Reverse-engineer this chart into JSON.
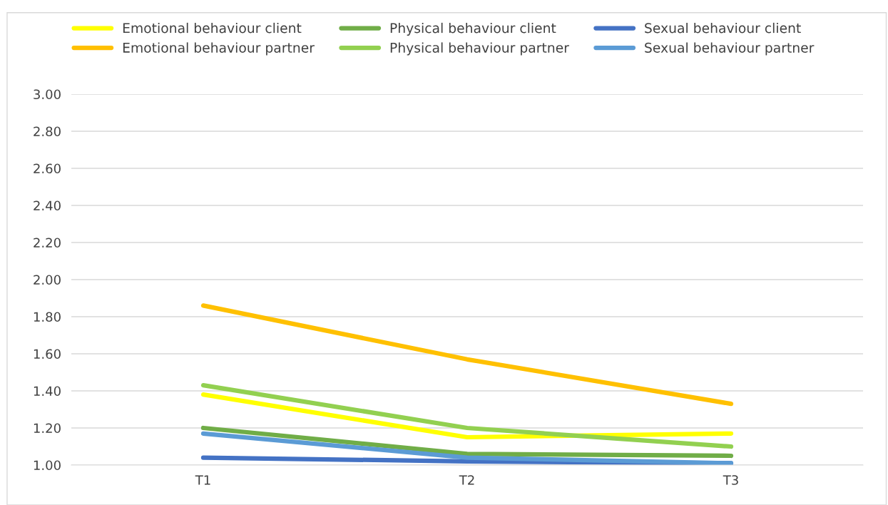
{
  "chart_data": {
    "type": "line",
    "categories": [
      "T1",
      "T2",
      "T3"
    ],
    "series": [
      {
        "name": "Emotional behaviour client",
        "color": "#ffff00",
        "values": [
          1.38,
          1.15,
          1.17
        ]
      },
      {
        "name": "Emotional behaviour partner",
        "color": "#ffc000",
        "values": [
          1.86,
          1.57,
          1.33
        ]
      },
      {
        "name": "Physical behaviour client",
        "color": "#70ad47",
        "values": [
          1.2,
          1.06,
          1.05
        ]
      },
      {
        "name": "Physical behaviour partner",
        "color": "#92d050",
        "values": [
          1.43,
          1.2,
          1.1
        ]
      },
      {
        "name": "Sexual behaviour client",
        "color": "#4472c4",
        "values": [
          1.04,
          1.02,
          1.01
        ]
      },
      {
        "name": "Sexual behaviour partner",
        "color": "#5b9bd5",
        "values": [
          1.17,
          1.04,
          1.01
        ]
      }
    ],
    "ylim": [
      1.0,
      3.0
    ],
    "yticks": [
      {
        "value": 1.0,
        "label": "1.00"
      },
      {
        "value": 1.2,
        "label": "1.20"
      },
      {
        "value": 1.4,
        "label": "1.40"
      },
      {
        "value": 1.6,
        "label": "1.60"
      },
      {
        "value": 1.8,
        "label": "1.80"
      },
      {
        "value": 2.0,
        "label": "2.00"
      },
      {
        "value": 2.2,
        "label": "2.20"
      },
      {
        "value": 2.4,
        "label": "2.40"
      },
      {
        "value": 2.6,
        "label": "2.60"
      },
      {
        "value": 2.8,
        "label": "2.80"
      },
      {
        "value": 3.0,
        "label": "3.00"
      }
    ],
    "grid": "y",
    "legend": "top",
    "marker": "none",
    "line_style": "solid"
  }
}
